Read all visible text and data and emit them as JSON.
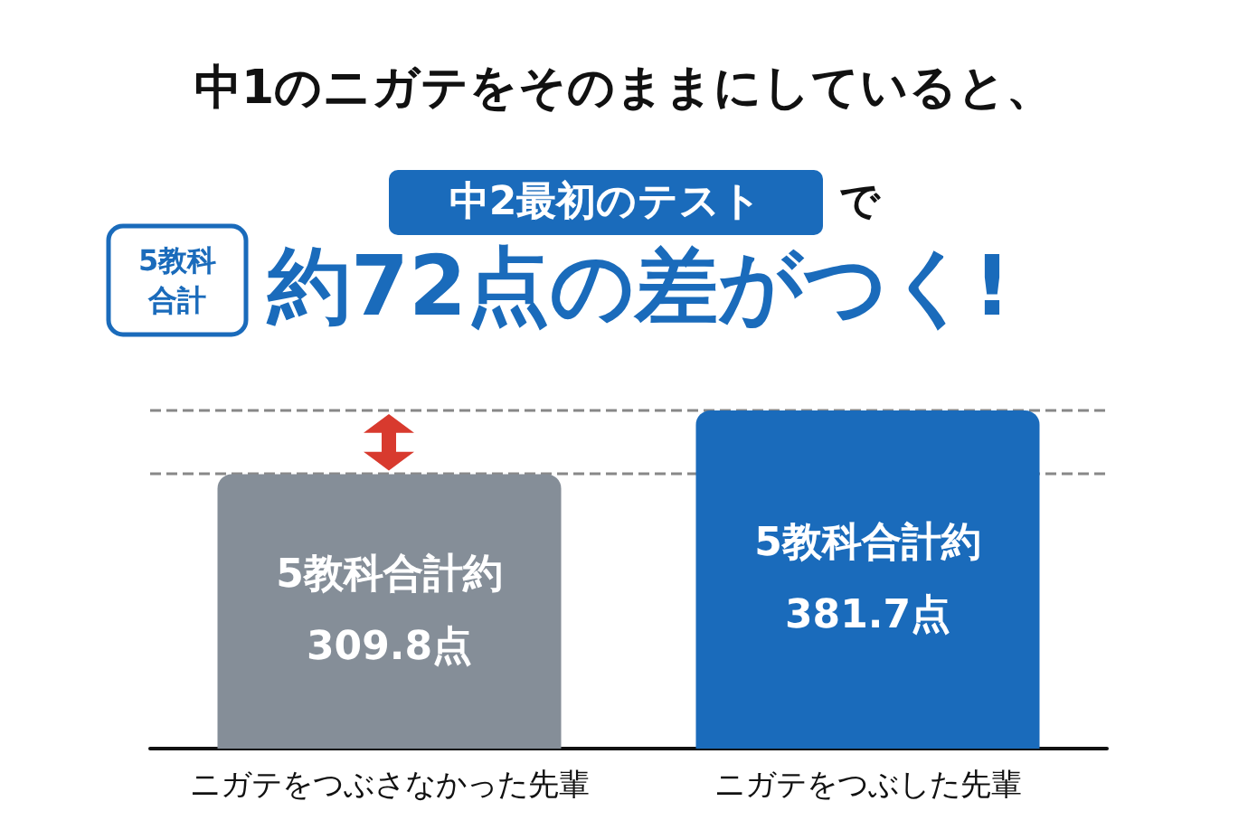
{
  "chart_data": {
    "type": "bar",
    "title": "中1のニガテをそのままにしていると、",
    "annotations": [
      "中2最初のテスト",
      "で",
      "5教科",
      "合計",
      "約72点の差がつく!"
    ],
    "categories": [
      "ニガテをつぶさなかった先輩",
      "ニガテをつぶした先輩"
    ],
    "values": [
      309.8,
      381.7
    ],
    "colors": [
      "#858e98",
      "#1a6bbb"
    ],
    "value_labels": [
      "5教科合計約309.8点",
      "5教科合計約381.7点"
    ],
    "ref_lines": [
      {
        "axis": "y",
        "value": 381.7,
        "color": "#888888",
        "line_style": "dashed"
      },
      {
        "axis": "y",
        "value": 309.8,
        "color": "#888888",
        "line_style": "dashed"
      }
    ]
  }
}
